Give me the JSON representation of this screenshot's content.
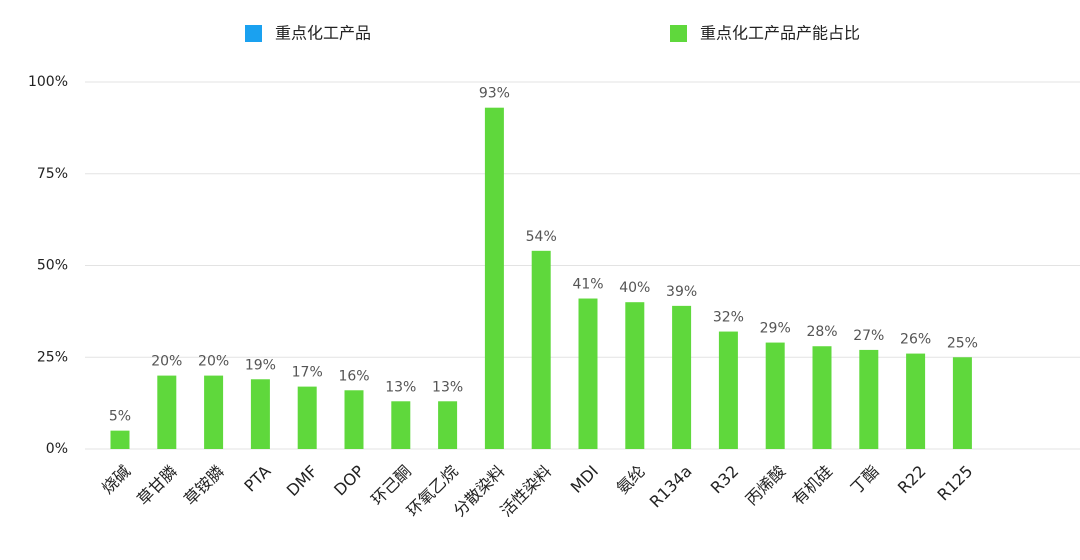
{
  "chart_data": {
    "type": "bar",
    "categories": [
      "烧碱",
      "草甘膦",
      "草铵膦",
      "PTA",
      "DMF",
      "DOP",
      "环己酮",
      "环氧乙烷",
      "分散染料",
      "活性染料",
      "MDI",
      "氨纶",
      "R134a",
      "R32",
      "丙烯酸",
      "有机硅",
      "丁酯",
      "R22",
      "R125"
    ],
    "series": [
      {
        "name": "重点化工产品",
        "color": "#1aa1f0",
        "values": [
          null,
          null,
          null,
          null,
          null,
          null,
          null,
          null,
          null,
          null,
          null,
          null,
          null,
          null,
          null,
          null,
          null,
          null,
          null
        ]
      },
      {
        "name": "重点化工产品产能占比",
        "color": "#5fd83c",
        "values": [
          5,
          20,
          20,
          19,
          17,
          16,
          13,
          13,
          93,
          54,
          41,
          40,
          39,
          32,
          29,
          28,
          27,
          26,
          25
        ],
        "value_labels": [
          "5%",
          "20%",
          "20%",
          "19%",
          "17%",
          "16%",
          "13%",
          "13%",
          "93%",
          "54%",
          "41%",
          "40%",
          "39%",
          "32%",
          "29%",
          "28%",
          "27%",
          "26%",
          "25%"
        ]
      }
    ],
    "ylim": [
      0,
      100
    ],
    "yticks": [
      {
        "value": 0,
        "label": "0%"
      },
      {
        "value": 25,
        "label": "25%"
      },
      {
        "value": 50,
        "label": "50%"
      },
      {
        "value": 75,
        "label": "75%"
      },
      {
        "value": 100,
        "label": "100%"
      }
    ],
    "grid": true,
    "legend": "top"
  }
}
